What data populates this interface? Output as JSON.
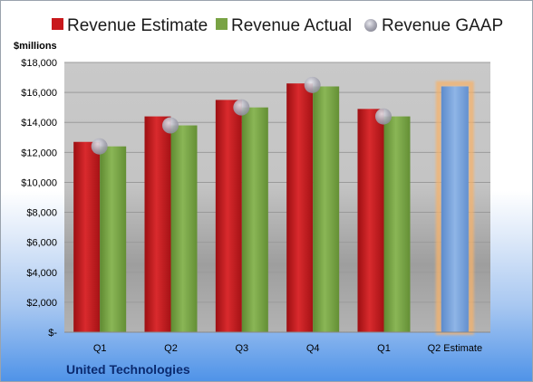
{
  "chart_data": {
    "type": "bar",
    "unit_label": "$millions",
    "company": "United Technologies",
    "categories": [
      "Q1",
      "Q2",
      "Q3",
      "Q4",
      "Q1",
      "Q2 Estimate"
    ],
    "series": [
      {
        "name": "Revenue Estimate",
        "color": "#c8181c",
        "values": [
          12700,
          14400,
          15500,
          16600,
          14900,
          null
        ]
      },
      {
        "name": "Revenue Actual",
        "color": "#79a344",
        "values": [
          12400,
          13800,
          15000,
          16400,
          14400,
          null
        ]
      },
      {
        "name": "Revenue GAAP",
        "color": "#a9a9b4",
        "marker": "circle",
        "values": [
          12400,
          13800,
          15000,
          16500,
          14400,
          null
        ]
      }
    ],
    "estimate": {
      "category": "Q2 Estimate",
      "value": 16400,
      "color": "#7ea7dd",
      "highlight": "#f6b26b"
    },
    "ylim": [
      0,
      18000
    ],
    "yticks": [
      0,
      2000,
      4000,
      6000,
      8000,
      10000,
      12000,
      14000,
      16000,
      18000
    ],
    "ytick_labels": [
      "$-",
      "$2,000",
      "$4,000",
      "$6,000",
      "$8,000",
      "$10,000",
      "$12,000",
      "$14,000",
      "$16,000",
      "$18,000"
    ],
    "grid": true,
    "legend_position": "top"
  }
}
